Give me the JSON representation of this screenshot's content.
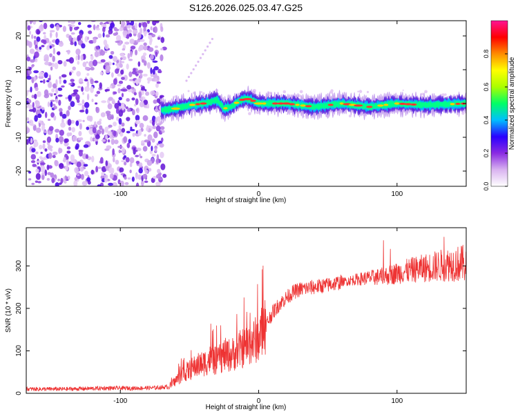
{
  "title": "S126.2026.025.03.47.G25",
  "chart_data": [
    {
      "type": "heatmap",
      "name": "spectrogram",
      "xlabel": "Height of straight line (km)",
      "ylabel": "Frequency (Hz)",
      "xlim": [
        -168,
        150
      ],
      "ylim": [
        -24.5,
        24.5
      ],
      "x_ticks": [
        -100,
        0,
        100
      ],
      "y_ticks": [
        -20,
        -10,
        0,
        10,
        20
      ],
      "noise_region_x": [
        -168,
        -68
      ],
      "signal_start_x": -70,
      "ridge": {
        "x": [
          -70,
          -60,
          -50,
          -40,
          -30,
          -25,
          -20,
          -15,
          -10,
          -5,
          0,
          20,
          40,
          60,
          80,
          100,
          120,
          150
        ],
        "freq": [
          -2,
          -1.5,
          -0.5,
          0,
          1,
          -1.5,
          -1,
          0.5,
          1.5,
          1,
          0,
          0,
          -1,
          0,
          -1,
          0,
          -0.5,
          0
        ]
      },
      "colorbar": {
        "label": "Normalized spectral amplitude",
        "range": [
          0,
          1
        ],
        "ticks": [
          0.0,
          0.2,
          0.4,
          0.6,
          0.8
        ],
        "tick_labels": [
          "0.0",
          "0.2",
          "0.4",
          "0.6",
          "0.8"
        ],
        "colors": [
          "#ffffff",
          "#d9b3f0",
          "#8a2be2",
          "#2a00ff",
          "#00bfff",
          "#00ff66",
          "#aaff00",
          "#ffff00",
          "#ff8c00",
          "#ff0000",
          "#ff1493"
        ]
      }
    },
    {
      "type": "line",
      "name": "snr",
      "xlabel": "Height of straight line (km)",
      "ylabel": "SNR (10 * v/v)",
      "xlim": [
        -168,
        150
      ],
      "ylim": [
        0,
        390
      ],
      "x_ticks": [
        -100,
        0,
        100
      ],
      "y_ticks": [
        0,
        100,
        200,
        300
      ],
      "color": "#ee3333",
      "series": [
        {
          "name": "SNR",
          "x": [
            -168,
            -140,
            -110,
            -90,
            -75,
            -65,
            -60,
            -55,
            -50,
            -45,
            -40,
            -35,
            -30,
            -25,
            -20,
            -15,
            -10,
            -5,
            0,
            5,
            10,
            15,
            20,
            25,
            30,
            40,
            50,
            60,
            70,
            80,
            90,
            100,
            110,
            120,
            130,
            140,
            150
          ],
          "values": [
            10,
            10,
            12,
            12,
            13,
            15,
            30,
            45,
            55,
            65,
            70,
            80,
            75,
            90,
            90,
            100,
            110,
            120,
            130,
            160,
            190,
            210,
            225,
            238,
            245,
            250,
            255,
            262,
            268,
            272,
            275,
            283,
            290,
            295,
            300,
            305,
            305
          ]
        }
      ]
    }
  ]
}
